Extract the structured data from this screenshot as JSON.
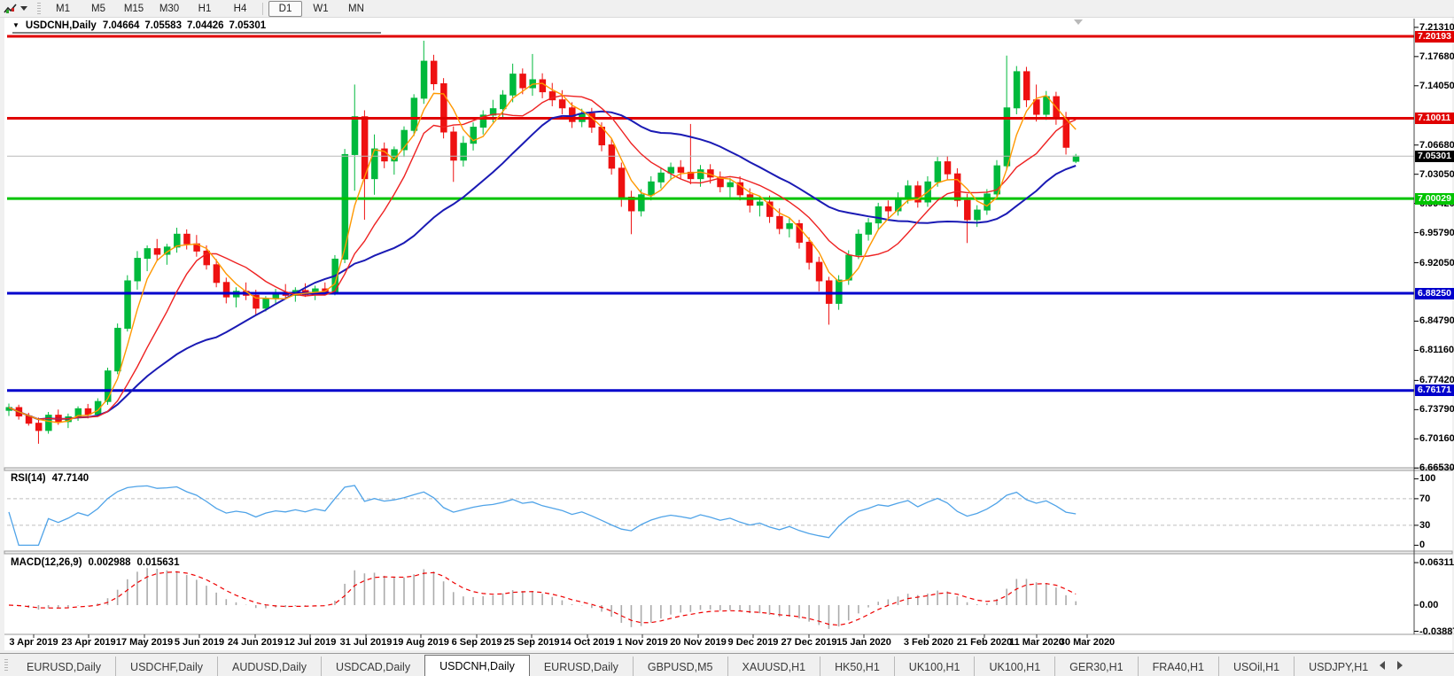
{
  "toolbar": {
    "timeframes": [
      {
        "label": "M1",
        "active": false
      },
      {
        "label": "M5",
        "active": false
      },
      {
        "label": "M15",
        "active": false
      },
      {
        "label": "M30",
        "active": false
      },
      {
        "label": "H1",
        "active": false
      },
      {
        "label": "H4",
        "active": false
      },
      {
        "label": "D1",
        "active": true
      },
      {
        "label": "W1",
        "active": false
      },
      {
        "label": "MN",
        "active": false
      }
    ]
  },
  "chart": {
    "symbol_title": "USDCNH,Daily",
    "open": "7.04664",
    "high": "7.05583",
    "low": "7.04426",
    "close": "7.05301"
  },
  "price_axis": {
    "ticks": [
      "7.21310",
      "7.17680",
      "7.14050",
      "7.06680",
      "7.03050",
      "6.99420",
      "6.95790",
      "6.92050",
      "6.84790",
      "6.81160",
      "6.77420",
      "6.73790",
      "6.70160",
      "6.66530"
    ]
  },
  "levels": [
    {
      "price": 7.20193,
      "label": "7.20193",
      "line_color": "#e00000",
      "box_color": "#e00000",
      "width": 3,
      "current": false
    },
    {
      "price": 7.10011,
      "label": "7.10011",
      "line_color": "#e00000",
      "box_color": "#e00000",
      "width": 3,
      "current": false
    },
    {
      "price": 7.05301,
      "label": "7.05301",
      "line_color": "#b8b8b8",
      "box_color": "#000000",
      "width": 1,
      "current": true
    },
    {
      "price": 7.00029,
      "label": "7.00029",
      "line_color": "#00c400",
      "box_color": "#00c400",
      "width": 3,
      "current": false
    },
    {
      "price": 6.8825,
      "label": "6.88250",
      "line_color": "#0000cc",
      "box_color": "#0000cc",
      "width": 3,
      "current": false
    },
    {
      "price": 6.76171,
      "label": "6.76171",
      "line_color": "#0000cc",
      "box_color": "#0000cc",
      "width": 3,
      "current": false
    }
  ],
  "time_axis": {
    "dates": [
      "3 Apr 2019",
      "23 Apr 2019",
      "17 May 2019",
      "5 Jun 2019",
      "24 Jun 2019",
      "12 Jul 2019",
      "31 Jul 2019",
      "19 Aug 2019",
      "6 Sep 2019",
      "25 Sep 2019",
      "14 Oct 2019",
      "1 Nov 2019",
      "20 Nov 2019",
      "9 Dec 2019",
      "27 Dec 2019",
      "15 Jan 2020",
      "3 Feb 2020",
      "21 Feb 2020",
      "11 Mar 2020",
      "30 Mar 2020"
    ]
  },
  "indicators": {
    "rsi": {
      "name": "RSI(14)",
      "value": "47.7140",
      "scale": [
        "100",
        "70",
        "30",
        "0"
      ],
      "levels": [
        70,
        30
      ],
      "line_color": "#4fa3e8"
    },
    "macd": {
      "name": "MACD(12,26,9)",
      "value1": "0.002988",
      "value2": "0.015631",
      "scale": [
        "0.063113",
        "0.00",
        "-0.038872"
      ],
      "bar_color": "#ababab",
      "signal_color": "#ee0000"
    }
  },
  "tabs": {
    "items": [
      {
        "label": "EURUSD,Daily",
        "active": false
      },
      {
        "label": "USDCHF,Daily",
        "active": false
      },
      {
        "label": "AUDUSD,Daily",
        "active": false
      },
      {
        "label": "USDCAD,Daily",
        "active": false
      },
      {
        "label": "USDCNH,Daily",
        "active": true
      },
      {
        "label": "EURUSD,Daily",
        "active": false
      },
      {
        "label": "GBPUSD,M5",
        "active": false
      },
      {
        "label": "XAUUSD,H1",
        "active": false
      },
      {
        "label": "HK50,H1",
        "active": false
      },
      {
        "label": "UK100,H1",
        "active": false
      },
      {
        "label": "UK100,H1",
        "active": false
      },
      {
        "label": "GER30,H1",
        "active": false
      },
      {
        "label": "FRA40,H1",
        "active": false
      },
      {
        "label": "USOil,H1",
        "active": false
      },
      {
        "label": "USDJPY,H1",
        "active": false
      }
    ]
  },
  "chart_data": {
    "type": "candlestick",
    "symbol": "USDCNH",
    "timeframe": "Daily",
    "x_start_date": "3 Apr 2019",
    "x_end_date": "30 Mar 2020",
    "ylim": [
      6.6653,
      7.2131
    ],
    "up_color": "#00b93c",
    "down_color": "#ee1111",
    "moving_averages": [
      {
        "name": "MA fast",
        "window": 4,
        "color": "#ff9800",
        "stroke": 1.4
      },
      {
        "name": "MA medium",
        "window": 9,
        "color": "#ee2222",
        "stroke": 1.4
      },
      {
        "name": "MA slow",
        "window": 22,
        "color": "#1a1ab4",
        "stroke": 2
      }
    ],
    "candles": [
      [
        6.737,
        6.7455,
        6.73,
        6.7405
      ],
      [
        6.7405,
        6.744,
        6.7255,
        6.73
      ],
      [
        6.73,
        6.734,
        6.718,
        6.721
      ],
      [
        6.721,
        6.728,
        6.6955,
        6.712
      ],
      [
        6.712,
        6.735,
        6.708,
        6.731
      ],
      [
        6.731,
        6.738,
        6.719,
        6.723
      ],
      [
        6.723,
        6.733,
        6.715,
        6.729
      ],
      [
        6.729,
        6.742,
        6.724,
        6.739
      ],
      [
        6.739,
        6.745,
        6.727,
        6.732
      ],
      [
        6.732,
        6.752,
        6.729,
        6.748
      ],
      [
        6.748,
        6.79,
        6.744,
        6.786
      ],
      [
        6.786,
        6.845,
        6.782,
        6.839
      ],
      [
        6.839,
        6.905,
        6.835,
        6.898
      ],
      [
        6.898,
        6.935,
        6.887,
        6.926
      ],
      [
        6.926,
        6.942,
        6.91,
        6.938
      ],
      [
        6.938,
        6.95,
        6.923,
        6.931
      ],
      [
        6.931,
        6.944,
        6.918,
        6.94
      ],
      [
        6.94,
        6.964,
        6.933,
        6.956
      ],
      [
        6.956,
        6.962,
        6.937,
        6.944
      ],
      [
        6.944,
        6.955,
        6.928,
        6.935
      ],
      [
        6.935,
        6.942,
        6.912,
        6.918
      ],
      [
        6.918,
        6.925,
        6.89,
        6.896
      ],
      [
        6.896,
        6.902,
        6.87,
        6.878
      ],
      [
        6.878,
        6.89,
        6.865,
        6.885
      ],
      [
        6.885,
        6.896,
        6.874,
        6.88
      ],
      [
        6.88,
        6.887,
        6.856,
        6.864
      ],
      [
        6.864,
        6.879,
        6.86,
        6.876
      ],
      [
        6.876,
        6.888,
        6.868,
        6.883
      ],
      [
        6.883,
        6.894,
        6.876,
        6.88
      ],
      [
        6.88,
        6.89,
        6.872,
        6.886
      ],
      [
        6.886,
        6.895,
        6.878,
        6.881
      ],
      [
        6.881,
        6.892,
        6.874,
        6.888
      ],
      [
        6.888,
        6.896,
        6.88,
        6.884
      ],
      [
        6.884,
        6.93,
        6.88,
        6.925
      ],
      [
        6.925,
        7.062,
        6.92,
        7.055
      ],
      [
        7.055,
        7.142,
        7.01,
        7.102
      ],
      [
        7.102,
        7.11,
        6.974,
        7.025
      ],
      [
        7.025,
        7.08,
        7.005,
        7.062
      ],
      [
        7.062,
        7.07,
        7.038,
        7.047
      ],
      [
        7.047,
        7.065,
        7.03,
        7.061
      ],
      [
        7.061,
        7.09,
        7.052,
        7.085
      ],
      [
        7.085,
        7.13,
        7.078,
        7.125
      ],
      [
        7.125,
        7.1965,
        7.118,
        7.171
      ],
      [
        7.171,
        7.179,
        7.135,
        7.143
      ],
      [
        7.143,
        7.15,
        7.075,
        7.083
      ],
      [
        7.083,
        7.09,
        7.021,
        7.048
      ],
      [
        7.048,
        7.078,
        7.04,
        7.069
      ],
      [
        7.069,
        7.095,
        7.06,
        7.089
      ],
      [
        7.089,
        7.11,
        7.08,
        7.104
      ],
      [
        7.104,
        7.123,
        7.095,
        7.112
      ],
      [
        7.112,
        7.135,
        7.101,
        7.129
      ],
      [
        7.129,
        7.168,
        7.12,
        7.155
      ],
      [
        7.155,
        7.162,
        7.13,
        7.138
      ],
      [
        7.138,
        7.18,
        7.128,
        7.148
      ],
      [
        7.148,
        7.156,
        7.125,
        7.133
      ],
      [
        7.133,
        7.144,
        7.115,
        7.123
      ],
      [
        7.123,
        7.135,
        7.105,
        7.113
      ],
      [
        7.113,
        7.12,
        7.088,
        7.096
      ],
      [
        7.096,
        7.112,
        7.089,
        7.106
      ],
      [
        7.106,
        7.113,
        7.082,
        7.089
      ],
      [
        7.089,
        7.095,
        7.059,
        7.067
      ],
      [
        7.067,
        7.074,
        7.03,
        7.038
      ],
      [
        7.038,
        7.045,
        6.99,
        7.002
      ],
      [
        7.002,
        7.01,
        6.956,
        6.985
      ],
      [
        6.985,
        7.012,
        6.978,
        7.005
      ],
      [
        7.005,
        7.028,
        6.998,
        7.021
      ],
      [
        7.021,
        7.038,
        7.013,
        7.032
      ],
      [
        7.032,
        7.045,
        7.023,
        7.039
      ],
      [
        7.039,
        7.048,
        7.025,
        7.033
      ],
      [
        7.033,
        7.093,
        7.018,
        7.025
      ],
      [
        7.025,
        7.042,
        7.015,
        7.036
      ],
      [
        7.036,
        7.043,
        7.019,
        7.027
      ],
      [
        7.027,
        7.034,
        7.008,
        7.015
      ],
      [
        7.015,
        7.026,
        7.002,
        7.02
      ],
      [
        7.02,
        7.028,
        6.998,
        7.005
      ],
      [
        7.005,
        7.013,
        6.983,
        6.992
      ],
      [
        6.992,
        7.003,
        6.978,
        6.996
      ],
      [
        6.996,
        7.004,
        6.97,
        6.978
      ],
      [
        6.978,
        6.988,
        6.956,
        6.963
      ],
      [
        6.963,
        6.976,
        6.952,
        6.969
      ],
      [
        6.969,
        6.974,
        6.938,
        6.946
      ],
      [
        6.946,
        6.952,
        6.912,
        6.921
      ],
      [
        6.921,
        6.928,
        6.885,
        6.898
      ],
      [
        6.898,
        6.903,
        6.8435,
        6.87
      ],
      [
        6.87,
        6.905,
        6.862,
        6.899
      ],
      [
        6.899,
        6.936,
        6.893,
        6.93
      ],
      [
        6.93,
        6.962,
        6.925,
        6.956
      ],
      [
        6.956,
        6.976,
        6.948,
        6.97
      ],
      [
        6.97,
        6.995,
        6.962,
        6.99
      ],
      [
        6.99,
        6.998,
        6.975,
        6.985
      ],
      [
        6.985,
        7.008,
        6.979,
        7.001
      ],
      [
        7.001,
        7.023,
        6.994,
        7.016
      ],
      [
        7.016,
        7.022,
        6.989,
        6.996
      ],
      [
        6.996,
        7.028,
        6.99,
        7.021
      ],
      [
        7.021,
        7.052,
        7.015,
        7.046
      ],
      [
        7.046,
        7.053,
        7.023,
        7.031
      ],
      [
        7.031,
        7.038,
        6.99,
        6.998
      ],
      [
        6.998,
        7.006,
        6.945,
        6.974
      ],
      [
        6.974,
        6.992,
        6.965,
        6.986
      ],
      [
        6.986,
        7.012,
        6.98,
        7.006
      ],
      [
        7.006,
        7.048,
        7.0,
        7.041
      ],
      [
        7.041,
        7.178,
        7.036,
        7.113
      ],
      [
        7.113,
        7.165,
        7.105,
        7.158
      ],
      [
        7.158,
        7.164,
        7.114,
        7.123
      ],
      [
        7.123,
        7.142,
        7.096,
        7.105
      ],
      [
        7.105,
        7.134,
        7.098,
        7.127
      ],
      [
        7.127,
        7.133,
        7.092,
        7.101
      ],
      [
        7.101,
        7.108,
        7.055,
        7.064
      ],
      [
        7.0466,
        7.0558,
        7.0443,
        7.053
      ]
    ]
  }
}
